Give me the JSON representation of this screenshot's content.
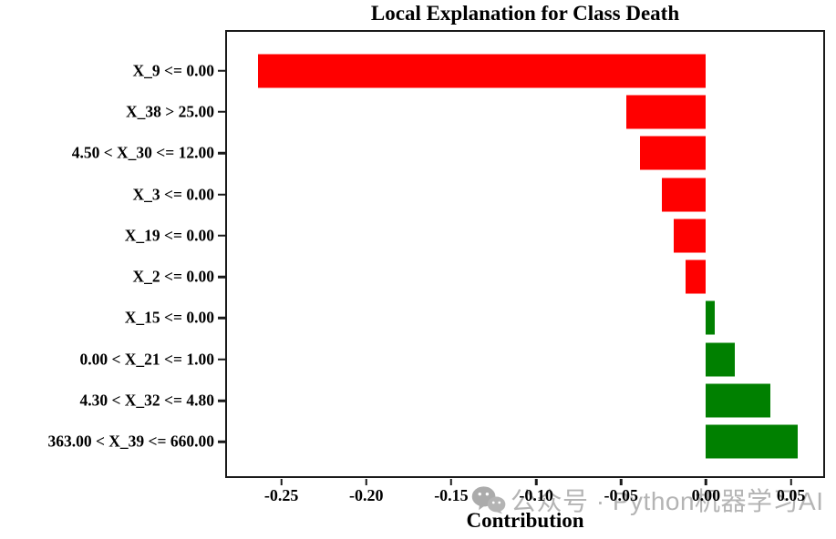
{
  "chart_data": {
    "type": "bar",
    "orientation": "horizontal",
    "title": "Local Explanation for Class Death",
    "xlabel": "Contribution",
    "ylabel": "",
    "categories": [
      "X_9 <= 0.00",
      "X_38 > 25.00",
      "4.50 < X_30 <= 12.00",
      "X_3 <= 0.00",
      "X_19 <= 0.00",
      "X_2 <= 0.00",
      "X_15 <= 0.00",
      "0.00 < X_21 <= 1.00",
      "4.30 < X_32 <= 4.80",
      "363.00 < X_39 <= 660.00"
    ],
    "values": [
      -0.264,
      -0.047,
      -0.039,
      -0.026,
      -0.019,
      -0.012,
      0.005,
      0.017,
      0.038,
      0.054
    ],
    "negative_color": "#ff0000",
    "positive_color": "#008000",
    "xlim": [
      -0.282,
      0.069
    ],
    "x_tick_values": [
      -0.25,
      -0.2,
      -0.15,
      -0.1,
      -0.05,
      0.0,
      0.05
    ],
    "x_tick_labels": [
      "-0.25",
      "-0.20",
      "-0.15",
      "-0.10",
      "-0.05",
      "0.00",
      "0.05"
    ],
    "grid": false,
    "legend": false
  },
  "watermark": {
    "icon": "wechat-icon",
    "text": "公众号 · Python机器学习AI",
    "color": "#a8a8a8"
  }
}
